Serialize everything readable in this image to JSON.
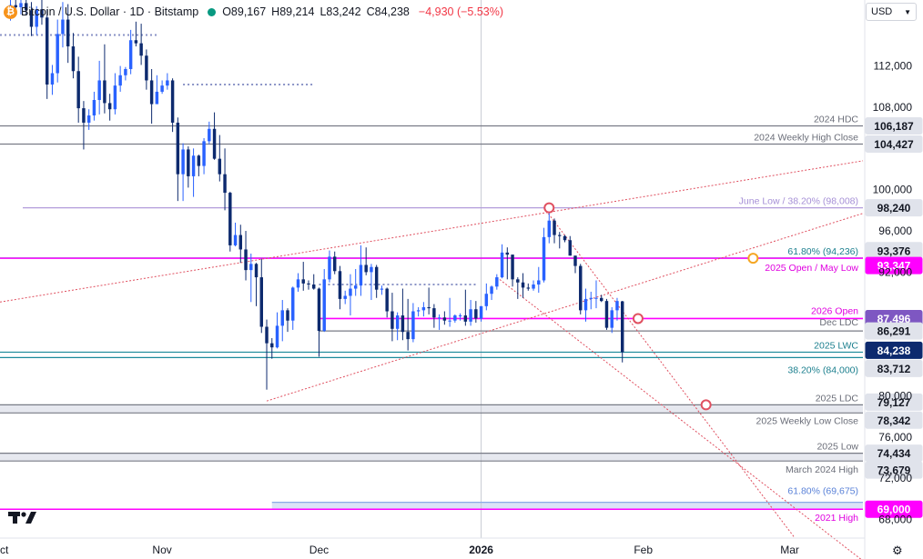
{
  "header": {
    "symbol": "Bitcoin / U.S. Dollar · 1D · Bitstamp",
    "open": "O89,167",
    "high": "H89,214",
    "low": "L83,242",
    "close": "C84,238",
    "change": "−4,930 (−5.53%)",
    "currency": "USD",
    "coin_glyph": "₿"
  },
  "colors": {
    "up": "#2962ff",
    "down": "#0d2a6e",
    "gray_level": "#787b86",
    "teal_level": "#1b8a9a",
    "magenta_level": "#ff00ff",
    "violet_level": "#b39ddb",
    "red_dotted": "#e05060",
    "orange_marker": "#f5a623",
    "navy_badge": "#0d2a6e",
    "price_up_bg": "#2962ff"
  },
  "chart_data": {
    "type": "candlestick",
    "title": "Bitcoin / U.S. Dollar · 1D · Bitstamp",
    "ylim": [
      66200,
      118400
    ],
    "y_ticks": [
      112000,
      108000,
      100000,
      96000,
      92000,
      80000,
      76000,
      72000,
      68000
    ],
    "y_tick_labels": [
      "112,000",
      "108,000",
      "100,000",
      "96,000",
      "92,000",
      "80,000",
      "76,000",
      "72,000",
      "68,000"
    ],
    "x_labels": [
      "Oct",
      "Nov",
      "Dec",
      "2026",
      "Feb",
      "Mar"
    ],
    "x_label_dates": [
      "2025-10-01",
      "2025-11-01",
      "2025-12-01",
      "2026-01-01",
      "2026-02-01",
      "2026-03-01"
    ],
    "x_range": [
      "2025-10-01",
      "2026-03-15"
    ],
    "levels": [
      {
        "value": 106187,
        "label": "2024 HDC",
        "price": "106,187",
        "style": "gray"
      },
      {
        "value": 104427,
        "label": "2024 Weekly High Close",
        "price": "104,427",
        "style": "gray"
      },
      {
        "value": 98240,
        "label": "June Low / 38.20% (98,008)",
        "price": "98,240",
        "style": "violet"
      },
      {
        "value": 93376,
        "label": "61.80% (94,236)",
        "price": "93,376",
        "style": "teal"
      },
      {
        "value": 93347,
        "label": "2025 Open / May Low",
        "price": "93,347",
        "style": "magenta"
      },
      {
        "value": 87496,
        "label": "2026 Open",
        "price": "87,496",
        "style": "magenta"
      },
      {
        "value": 86291,
        "label": "Dec LDC",
        "price": "86,291",
        "style": "gray"
      },
      {
        "value": 84238,
        "label": "2025 LWC",
        "price": "84,238",
        "style": "teal"
      },
      {
        "value": 83712,
        "label": "38.20% (84,000)",
        "price": "83,712",
        "style": "teal"
      },
      {
        "value": 79127,
        "label": "2025 LDC",
        "price": "79,127",
        "style": "gray"
      },
      {
        "value": 78342,
        "label": "2025 Weekly Low Close",
        "price": "78,342",
        "style": "gray"
      },
      {
        "value": 74434,
        "label": "2025 Low",
        "price": "74,434",
        "style": "gray"
      },
      {
        "value": 73679,
        "label": "March 2024 High",
        "price": "73,679",
        "style": "gray"
      },
      {
        "value": 69675,
        "label": "61.80% (69,675)",
        "price": "",
        "style": "blue"
      },
      {
        "value": 69000,
        "label": "2021 High",
        "price": "69,000",
        "style": "magenta"
      }
    ],
    "candles": [
      [
        "2025-10-03",
        117200,
        118400,
        116400,
        117900
      ],
      [
        "2025-10-04",
        117900,
        118400,
        117300,
        117700
      ],
      [
        "2025-10-05",
        117700,
        118400,
        117000,
        118100
      ],
      [
        "2025-10-06",
        118100,
        118400,
        116900,
        117400
      ],
      [
        "2025-10-07",
        117400,
        118200,
        114900,
        115800
      ],
      [
        "2025-10-08",
        115800,
        117800,
        115000,
        117500
      ],
      [
        "2025-10-09",
        117500,
        118400,
        116000,
        116700
      ],
      [
        "2025-10-10",
        116700,
        117500,
        108800,
        110200
      ],
      [
        "2025-10-11",
        110200,
        112100,
        109200,
        111300
      ],
      [
        "2025-10-12",
        111300,
        116500,
        110400,
        115100
      ],
      [
        "2025-10-13",
        115100,
        118200,
        113800,
        116500
      ],
      [
        "2025-10-14",
        116500,
        118000,
        112300,
        113900
      ],
      [
        "2025-10-15",
        113900,
        115200,
        110800,
        111500
      ],
      [
        "2025-10-16",
        111500,
        112900,
        106500,
        107900
      ],
      [
        "2025-10-17",
        107900,
        108600,
        103900,
        106500
      ],
      [
        "2025-10-18",
        106500,
        107800,
        105800,
        107200
      ],
      [
        "2025-10-19",
        107200,
        109500,
        106700,
        108700
      ],
      [
        "2025-10-20",
        108700,
        112500,
        107300,
        110600
      ],
      [
        "2025-10-21",
        110600,
        114100,
        107400,
        108400
      ],
      [
        "2025-10-22",
        108400,
        109300,
        106700,
        107800
      ],
      [
        "2025-10-23",
        107800,
        111300,
        107300,
        110100
      ],
      [
        "2025-10-24",
        110100,
        112000,
        109500,
        111100
      ],
      [
        "2025-10-25",
        111100,
        111900,
        110600,
        111700
      ],
      [
        "2025-10-26",
        111700,
        115500,
        111200,
        114500
      ],
      [
        "2025-10-27",
        114500,
        116300,
        113900,
        114200
      ],
      [
        "2025-10-28",
        114200,
        116100,
        112100,
        113000
      ],
      [
        "2025-10-29",
        113000,
        113600,
        109700,
        110600
      ],
      [
        "2025-10-30",
        110600,
        111700,
        106400,
        108300
      ],
      [
        "2025-10-31",
        108300,
        111100,
        108300,
        109500
      ],
      [
        "2025-11-01",
        109500,
        110600,
        109300,
        110100
      ],
      [
        "2025-11-02",
        110100,
        111300,
        109700,
        110600
      ],
      [
        "2025-11-03",
        110600,
        110800,
        105600,
        106500
      ],
      [
        "2025-11-04",
        106500,
        107000,
        98900,
        101500
      ],
      [
        "2025-11-05",
        101500,
        104500,
        98900,
        103900
      ],
      [
        "2025-11-06",
        103900,
        104200,
        100200,
        101300
      ],
      [
        "2025-11-07",
        101300,
        104000,
        99300,
        103300
      ],
      [
        "2025-11-08",
        103300,
        103400,
        101300,
        102300
      ],
      [
        "2025-11-09",
        102300,
        105000,
        101500,
        104700
      ],
      [
        "2025-11-10",
        104700,
        106600,
        104400,
        105900
      ],
      [
        "2025-11-11",
        105900,
        107500,
        102900,
        103000
      ],
      [
        "2025-11-12",
        103000,
        105300,
        100800,
        101500
      ],
      [
        "2025-11-13",
        101500,
        104000,
        98000,
        99700
      ],
      [
        "2025-11-14",
        99700,
        99800,
        94000,
        94600
      ],
      [
        "2025-11-15",
        94600,
        96800,
        94500,
        95600
      ],
      [
        "2025-11-16",
        95600,
        96600,
        92900,
        94200
      ],
      [
        "2025-11-17",
        94200,
        96000,
        91200,
        92200
      ],
      [
        "2025-11-18",
        92200,
        93800,
        89100,
        92800
      ],
      [
        "2025-11-19",
        92800,
        92900,
        88700,
        91500
      ],
      [
        "2025-11-20",
        91500,
        93300,
        86100,
        86700
      ],
      [
        "2025-11-21",
        86700,
        87400,
        80600,
        85100
      ],
      [
        "2025-11-22",
        85100,
        85600,
        83600,
        84700
      ],
      [
        "2025-11-23",
        84700,
        88100,
        84600,
        86800
      ],
      [
        "2025-11-24",
        86800,
        89300,
        85300,
        88300
      ],
      [
        "2025-11-25",
        88300,
        88500,
        86200,
        87300
      ],
      [
        "2025-11-26",
        87300,
        90600,
        86400,
        90500
      ],
      [
        "2025-11-27",
        90500,
        91900,
        90100,
        91300
      ],
      [
        "2025-11-28",
        91300,
        93000,
        90200,
        90900
      ],
      [
        "2025-11-29",
        90900,
        91200,
        90300,
        90800
      ],
      [
        "2025-11-30",
        90800,
        91800,
        90300,
        90400
      ],
      [
        "2025-12-01",
        90400,
        90500,
        83800,
        86300
      ],
      [
        "2025-12-02",
        86300,
        92300,
        86200,
        91300
      ],
      [
        "2025-12-03",
        91300,
        94100,
        91000,
        93500
      ],
      [
        "2025-12-04",
        93500,
        94000,
        91800,
        92100
      ],
      [
        "2025-12-05",
        92100,
        92600,
        88400,
        89400
      ],
      [
        "2025-12-06",
        89400,
        90200,
        88900,
        89700
      ],
      [
        "2025-12-07",
        89700,
        91800,
        87800,
        90400
      ],
      [
        "2025-12-08",
        90400,
        92300,
        89700,
        90700
      ],
      [
        "2025-12-09",
        90700,
        94600,
        89700,
        92700
      ],
      [
        "2025-12-10",
        92700,
        94400,
        91700,
        92000
      ],
      [
        "2025-12-11",
        92000,
        92800,
        89300,
        92500
      ],
      [
        "2025-12-12",
        92500,
        92700,
        89500,
        90300
      ],
      [
        "2025-12-13",
        90300,
        90700,
        89800,
        90400
      ],
      [
        "2025-12-14",
        90400,
        90500,
        87600,
        88200
      ],
      [
        "2025-12-15",
        88200,
        90000,
        85300,
        86500
      ],
      [
        "2025-12-16",
        86500,
        88100,
        85400,
        87800
      ],
      [
        "2025-12-17",
        87800,
        90400,
        85400,
        86200
      ],
      [
        "2025-12-18",
        86200,
        89400,
        84400,
        85500
      ],
      [
        "2025-12-19",
        85500,
        89000,
        85200,
        88200
      ],
      [
        "2025-12-20",
        88200,
        88600,
        87700,
        88300
      ],
      [
        "2025-12-21",
        88300,
        89100,
        87700,
        88600
      ],
      [
        "2025-12-22",
        88600,
        90500,
        87900,
        88500
      ],
      [
        "2025-12-23",
        88500,
        88900,
        86600,
        87600
      ],
      [
        "2025-12-24",
        87600,
        87900,
        86400,
        87600
      ],
      [
        "2025-12-25",
        87600,
        88200,
        86900,
        87300
      ],
      [
        "2025-12-26",
        87300,
        89500,
        86700,
        87300
      ],
      [
        "2025-12-27",
        87300,
        87900,
        87100,
        87800
      ],
      [
        "2025-12-28",
        87800,
        88000,
        87300,
        87800
      ],
      [
        "2025-12-29",
        87800,
        90300,
        86800,
        87200
      ],
      [
        "2025-12-30",
        87200,
        89300,
        86800,
        88400
      ],
      [
        "2025-12-31",
        88400,
        89200,
        87100,
        87500
      ],
      [
        "2026-01-01",
        87500,
        88700,
        87200,
        88700
      ],
      [
        "2026-01-02",
        88700,
        90900,
        88300,
        89900
      ],
      [
        "2026-01-03",
        89900,
        90700,
        89300,
        90600
      ],
      [
        "2026-01-04",
        90600,
        91800,
        90300,
        91500
      ],
      [
        "2026-01-05",
        91500,
        94700,
        91400,
        93900
      ],
      [
        "2026-01-06",
        93900,
        94400,
        91300,
        93700
      ],
      [
        "2026-01-07",
        93700,
        93700,
        90600,
        91300
      ],
      [
        "2026-01-08",
        91300,
        91500,
        89400,
        91000
      ],
      [
        "2026-01-09",
        91000,
        91900,
        89500,
        90500
      ],
      [
        "2026-01-10",
        90500,
        90900,
        90200,
        90400
      ],
      [
        "2026-01-11",
        90400,
        91200,
        90200,
        90800
      ],
      [
        "2026-01-12",
        90800,
        92500,
        90000,
        91200
      ],
      [
        "2026-01-13",
        91200,
        96300,
        91000,
        95400
      ],
      [
        "2026-01-14",
        95400,
        97900,
        94800,
        97000
      ],
      [
        "2026-01-15",
        97000,
        97200,
        94800,
        95600
      ],
      [
        "2026-01-16",
        95600,
        95900,
        94300,
        95500
      ],
      [
        "2026-01-17",
        95500,
        95600,
        94900,
        95100
      ],
      [
        "2026-01-18",
        95100,
        95500,
        93600,
        93600
      ],
      [
        "2026-01-19",
        93600,
        93600,
        91900,
        92600
      ],
      [
        "2026-01-20",
        92600,
        92800,
        87900,
        88300
      ],
      [
        "2026-01-21",
        88300,
        90400,
        87200,
        89400
      ],
      [
        "2026-01-22",
        89400,
        90100,
        88400,
        89500
      ],
      [
        "2026-01-23",
        89500,
        91200,
        88500,
        89500
      ],
      [
        "2026-01-24",
        89500,
        89800,
        89100,
        89200
      ],
      [
        "2026-01-25",
        89200,
        89400,
        86400,
        86600
      ],
      [
        "2026-01-26",
        86600,
        88600,
        86100,
        88300
      ],
      [
        "2026-01-27",
        88300,
        89500,
        87300,
        89200
      ],
      [
        "2026-01-28",
        89167,
        89214,
        83242,
        84238
      ]
    ],
    "dotted_reference_lines": [
      {
        "from": "2025-10-01",
        "to": "2025-10-31",
        "value": 115000
      },
      {
        "from": "2025-11-05",
        "to": "2025-11-30",
        "value": 110200
      },
      {
        "from": "2025-12-01",
        "to": "2025-12-31",
        "value": 90800
      }
    ],
    "trendlines": [
      {
        "from": [
          "2025-10-01",
          89100
        ],
        "to": [
          "2026-03-15",
          102800
        ],
        "style": "red-dotted"
      },
      {
        "from": [
          "2025-11-21",
          79500
        ],
        "to": [
          "2026-03-15",
          97700
        ],
        "style": "red-dotted"
      },
      {
        "from": [
          "2026-01-13",
          98240
        ],
        "to": [
          "2026-03-02",
          66200
        ],
        "style": "red-dotted"
      },
      {
        "from": [
          "2026-01-04",
          91500
        ],
        "to": [
          "2026-03-15",
          64000
        ],
        "style": "red-dotted"
      }
    ],
    "markers": [
      {
        "date": "2026-01-14",
        "value": 98240,
        "color": "red"
      },
      {
        "date": "2026-01-31",
        "value": 87496,
        "color": "red"
      },
      {
        "date": "2026-02-13",
        "value": 79127,
        "color": "red"
      },
      {
        "date": "2026-02-22",
        "value": 93347,
        "color": "orange"
      }
    ],
    "time_divider": "2026-01-01",
    "grid": false,
    "legend": "none"
  }
}
